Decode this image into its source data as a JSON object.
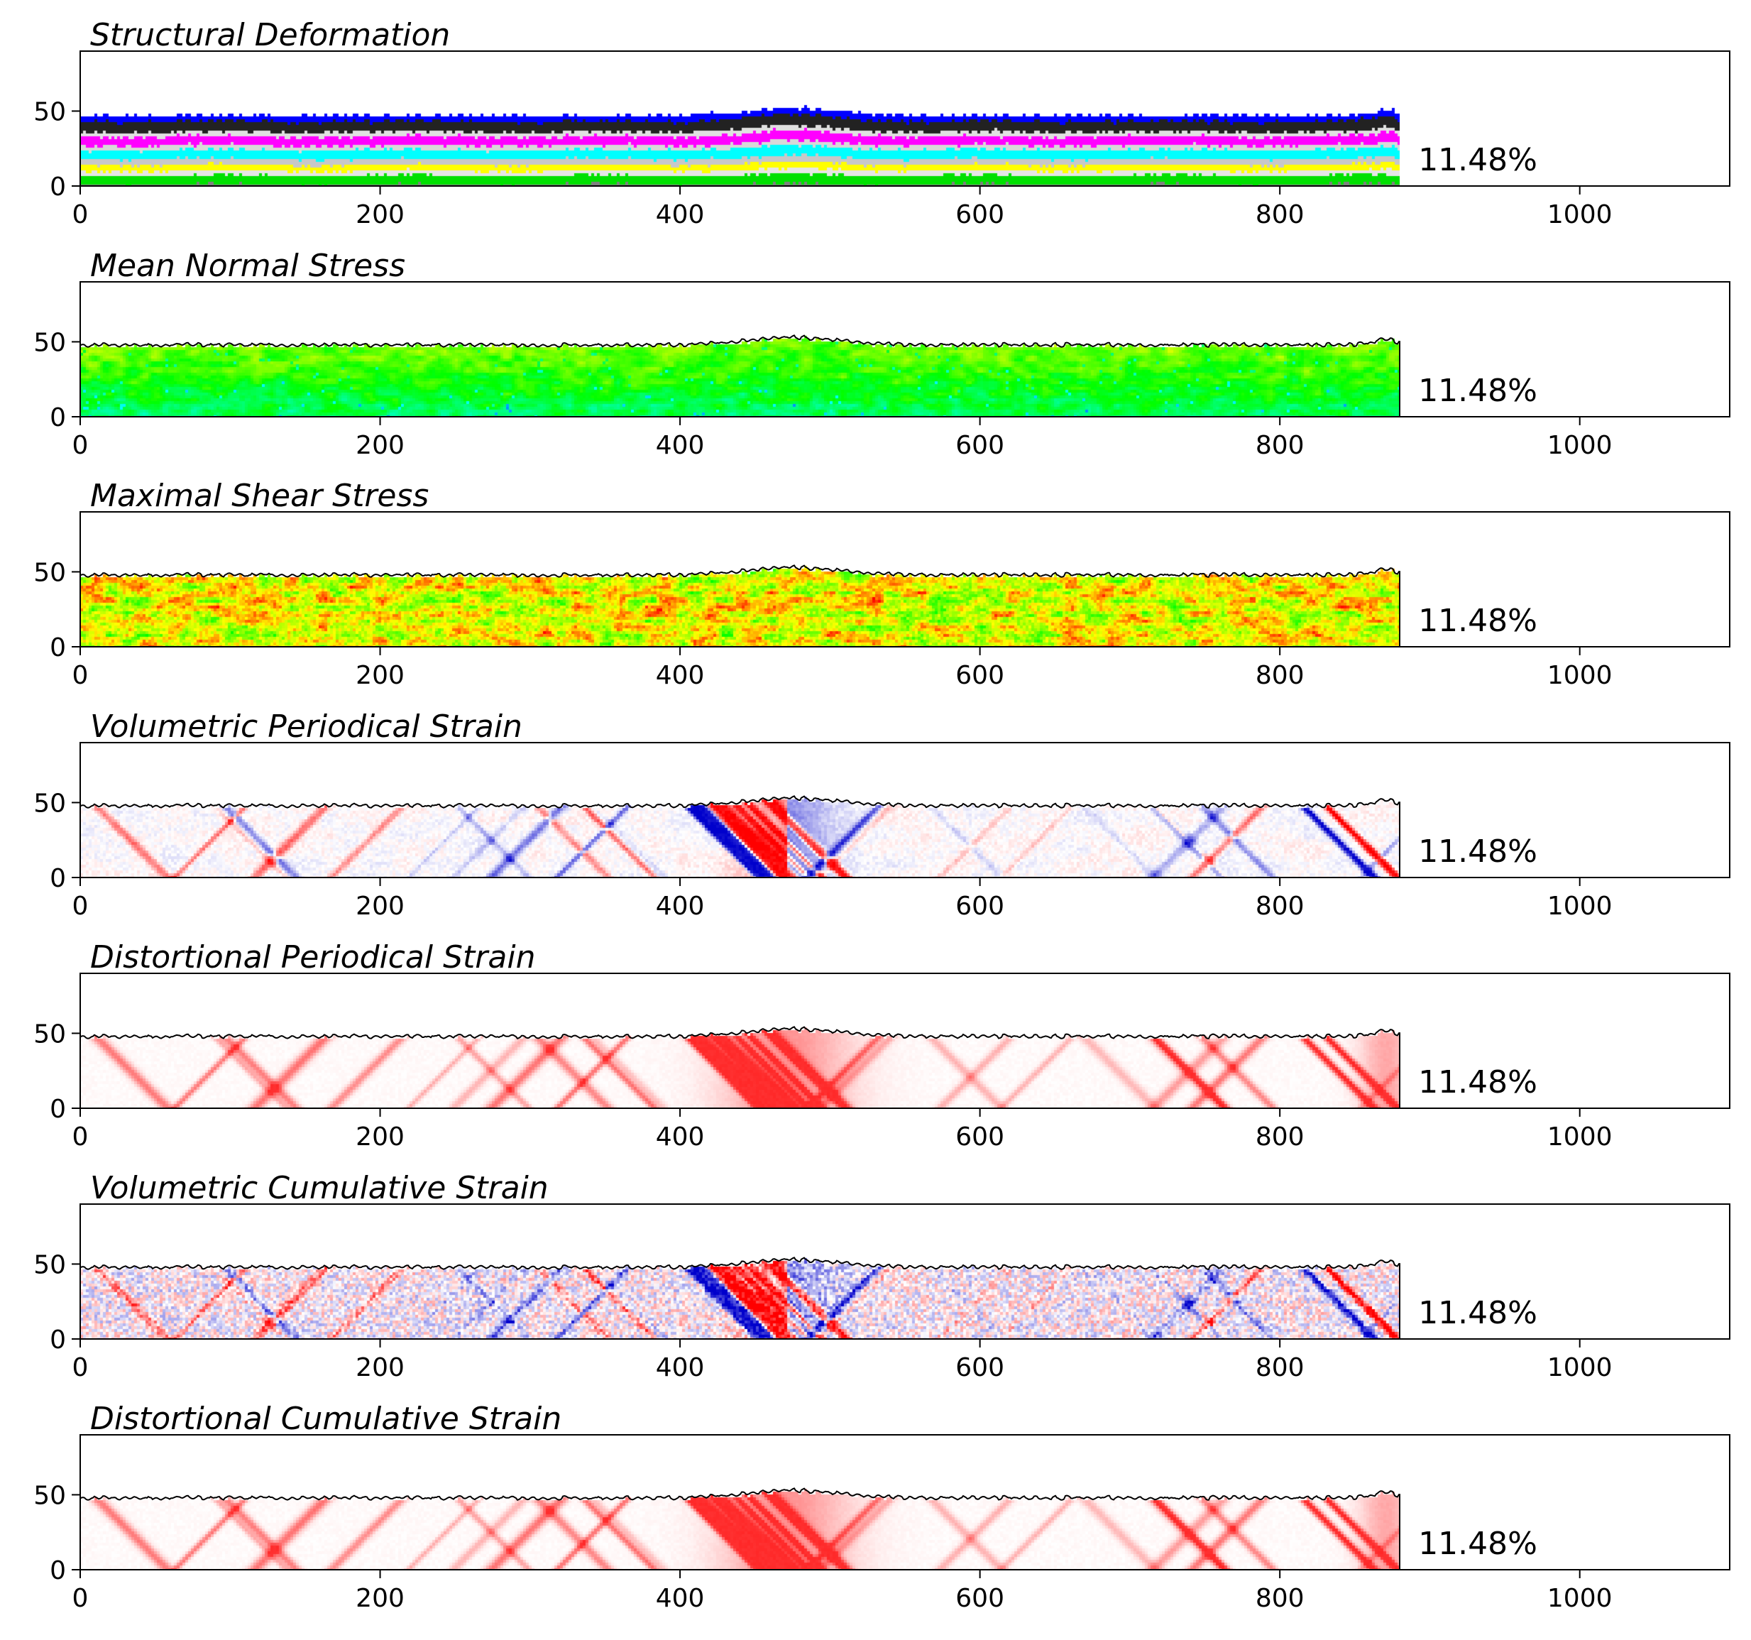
{
  "chart_data": [
    {
      "type": "heatmap",
      "title": "Structural Deformation",
      "field": "layers",
      "xlim": [
        0,
        1100
      ],
      "ylim": [
        0,
        90
      ],
      "xticks": [
        "0",
        "200",
        "400",
        "600",
        "800",
        "1000"
      ],
      "yticks": [
        "0",
        "50"
      ],
      "grid": false,
      "annotation": "11.48%",
      "data_extent_x": [
        0,
        880
      ],
      "surface_height": 48,
      "layer_colors": [
        "#808080",
        "#00e000",
        "#e6e6e6",
        "#ffff00",
        "#c8c8c8",
        "#00ffff",
        "#d8d8d8",
        "#ff00ff",
        "#e0e0e0",
        "#222222",
        "#0000ff"
      ],
      "layer_tops": [
        2,
        8,
        11,
        15,
        19,
        25,
        28,
        34,
        37,
        44,
        48
      ]
    },
    {
      "type": "heatmap",
      "title": "Mean Normal Stress",
      "field": "mean-stress",
      "xlim": [
        0,
        1100
      ],
      "ylim": [
        0,
        90
      ],
      "xticks": [
        "0",
        "200",
        "400",
        "600",
        "800",
        "1000"
      ],
      "yticks": [
        "0",
        "50"
      ],
      "grid": false,
      "annotation": "11.48%",
      "data_extent_x": [
        0,
        880
      ],
      "surface_height": 48,
      "colormap": "gist_rainbow"
    },
    {
      "type": "heatmap",
      "title": "Maximal Shear Stress",
      "field": "shear-stress",
      "xlim": [
        0,
        1100
      ],
      "ylim": [
        0,
        90
      ],
      "xticks": [
        "0",
        "200",
        "400",
        "600",
        "800",
        "1000"
      ],
      "yticks": [
        "0",
        "50"
      ],
      "grid": false,
      "annotation": "11.48%",
      "data_extent_x": [
        0,
        880
      ],
      "surface_height": 48,
      "colormap": "gist_rainbow"
    },
    {
      "type": "heatmap",
      "title": "Volumetric Periodical Strain",
      "field": "volumetric",
      "xlim": [
        0,
        1100
      ],
      "ylim": [
        0,
        90
      ],
      "xticks": [
        "0",
        "200",
        "400",
        "600",
        "800",
        "1000"
      ],
      "yticks": [
        "0",
        "50"
      ],
      "grid": false,
      "annotation": "11.48%",
      "data_extent_x": [
        0,
        880
      ],
      "surface_height": 48,
      "colormap": "bwr",
      "noise": 0.08
    },
    {
      "type": "heatmap",
      "title": "Distortional Periodical Strain",
      "field": "distortional",
      "xlim": [
        0,
        1100
      ],
      "ylim": [
        0,
        90
      ],
      "xticks": [
        "0",
        "200",
        "400",
        "600",
        "800",
        "1000"
      ],
      "yticks": [
        "0",
        "50"
      ],
      "grid": false,
      "annotation": "11.48%",
      "data_extent_x": [
        0,
        880
      ],
      "surface_height": 48,
      "colormap": "white-red"
    },
    {
      "type": "heatmap",
      "title": "Volumetric Cumulative Strain",
      "field": "volumetric",
      "xlim": [
        0,
        1100
      ],
      "ylim": [
        0,
        90
      ],
      "xticks": [
        "0",
        "200",
        "400",
        "600",
        "800",
        "1000"
      ],
      "yticks": [
        "0",
        "50"
      ],
      "grid": false,
      "annotation": "11.48%",
      "data_extent_x": [
        0,
        880
      ],
      "surface_height": 48,
      "colormap": "bwr",
      "noise": 0.35
    },
    {
      "type": "heatmap",
      "title": "Distortional Cumulative Strain",
      "field": "distortional",
      "xlim": [
        0,
        1100
      ],
      "ylim": [
        0,
        90
      ],
      "xticks": [
        "0",
        "200",
        "400",
        "600",
        "800",
        "1000"
      ],
      "yticks": [
        "0",
        "50"
      ],
      "grid": false,
      "annotation": "11.48%",
      "data_extent_x": [
        0,
        880
      ],
      "surface_height": 48,
      "colormap": "white-red"
    }
  ]
}
